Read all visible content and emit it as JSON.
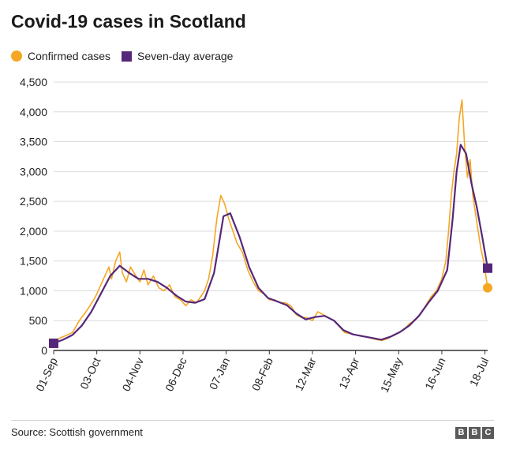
{
  "title": "Covid-19 cases in Scotland",
  "legend": {
    "confirmed": "Confirmed cases",
    "average": "Seven-day average"
  },
  "colors": {
    "confirmed": "#f5a623",
    "average": "#55277a",
    "grid": "#d9d9d9",
    "axis": "#333333"
  },
  "source": "Source: Scottish government",
  "logo": [
    "B",
    "B",
    "C"
  ],
  "chart_data": {
    "type": "line",
    "title": "Covid-19 cases in Scotland",
    "xlabel": "",
    "ylabel": "",
    "ylim": [
      0,
      4500
    ],
    "yticks": [
      0,
      500,
      1000,
      1500,
      2000,
      2500,
      3000,
      3500,
      4000,
      4500
    ],
    "ytick_labels": [
      "0",
      "500",
      "1,000",
      "1,500",
      "2,000",
      "2,500",
      "3,000",
      "3,500",
      "4,000",
      "4,500"
    ],
    "xticks": [
      "01-Sep",
      "03-Oct",
      "04-Nov",
      "06-Dec",
      "07-Jan",
      "08-Feb",
      "12-Mar",
      "13-Apr",
      "15-May",
      "16-Jun",
      "18-Jul"
    ],
    "x_range": [
      "2020-09-01",
      "2021-07-20"
    ],
    "grid": true,
    "legend_position": "top-left",
    "series": [
      {
        "name": "Confirmed cases",
        "style": "line with endpoint dot",
        "points": [
          [
            "2020-09-01",
            150
          ],
          [
            "2020-09-05",
            200
          ],
          [
            "2020-09-10",
            250
          ],
          [
            "2020-09-15",
            300
          ],
          [
            "2020-09-20",
            500
          ],
          [
            "2020-09-25",
            650
          ],
          [
            "2020-09-28",
            750
          ],
          [
            "2020-10-02",
            900
          ],
          [
            "2020-10-06",
            1100
          ],
          [
            "2020-10-10",
            1300
          ],
          [
            "2020-10-12",
            1400
          ],
          [
            "2020-10-14",
            1200
          ],
          [
            "2020-10-17",
            1500
          ],
          [
            "2020-10-20",
            1650
          ],
          [
            "2020-10-22",
            1300
          ],
          [
            "2020-10-25",
            1150
          ],
          [
            "2020-10-28",
            1400
          ],
          [
            "2020-11-01",
            1250
          ],
          [
            "2020-11-04",
            1150
          ],
          [
            "2020-11-07",
            1350
          ],
          [
            "2020-11-10",
            1100
          ],
          [
            "2020-11-14",
            1250
          ],
          [
            "2020-11-18",
            1050
          ],
          [
            "2020-11-22",
            1000
          ],
          [
            "2020-11-26",
            1100
          ],
          [
            "2020-11-30",
            900
          ],
          [
            "2020-12-04",
            850
          ],
          [
            "2020-12-08",
            750
          ],
          [
            "2020-12-12",
            850
          ],
          [
            "2020-12-16",
            800
          ],
          [
            "2020-12-19",
            900
          ],
          [
            "2020-12-22",
            1000
          ],
          [
            "2020-12-25",
            1200
          ],
          [
            "2020-12-28",
            1600
          ],
          [
            "2020-12-31",
            2200
          ],
          [
            "2021-01-03",
            2600
          ],
          [
            "2021-01-06",
            2450
          ],
          [
            "2021-01-09",
            2200
          ],
          [
            "2021-01-12",
            2000
          ],
          [
            "2021-01-15",
            1800
          ],
          [
            "2021-01-19",
            1650
          ],
          [
            "2021-01-23",
            1350
          ],
          [
            "2021-01-27",
            1150
          ],
          [
            "2021-01-31",
            1000
          ],
          [
            "2021-02-04",
            950
          ],
          [
            "2021-02-08",
            850
          ],
          [
            "2021-02-12",
            850
          ],
          [
            "2021-02-16",
            800
          ],
          [
            "2021-02-20",
            800
          ],
          [
            "2021-02-24",
            750
          ],
          [
            "2021-02-28",
            600
          ],
          [
            "2021-03-04",
            550
          ],
          [
            "2021-03-08",
            550
          ],
          [
            "2021-03-12",
            500
          ],
          [
            "2021-03-16",
            650
          ],
          [
            "2021-03-20",
            600
          ],
          [
            "2021-03-24",
            550
          ],
          [
            "2021-03-28",
            500
          ],
          [
            "2021-04-01",
            400
          ],
          [
            "2021-04-05",
            300
          ],
          [
            "2021-04-09",
            280
          ],
          [
            "2021-04-13",
            260
          ],
          [
            "2021-04-17",
            250
          ],
          [
            "2021-04-21",
            230
          ],
          [
            "2021-04-25",
            200
          ],
          [
            "2021-04-29",
            180
          ],
          [
            "2021-05-03",
            170
          ],
          [
            "2021-05-07",
            200
          ],
          [
            "2021-05-11",
            260
          ],
          [
            "2021-05-15",
            300
          ],
          [
            "2021-05-19",
            350
          ],
          [
            "2021-05-23",
            450
          ],
          [
            "2021-05-27",
            500
          ],
          [
            "2021-05-31",
            600
          ],
          [
            "2021-06-04",
            750
          ],
          [
            "2021-06-08",
            900
          ],
          [
            "2021-06-12",
            1000
          ],
          [
            "2021-06-16",
            1200
          ],
          [
            "2021-06-19",
            1500
          ],
          [
            "2021-06-21",
            2000
          ],
          [
            "2021-06-23",
            2600
          ],
          [
            "2021-06-25",
            3000
          ],
          [
            "2021-06-27",
            3300
          ],
          [
            "2021-06-29",
            3900
          ],
          [
            "2021-07-01",
            4200
          ],
          [
            "2021-07-03",
            3400
          ],
          [
            "2021-07-05",
            2900
          ],
          [
            "2021-07-07",
            3200
          ],
          [
            "2021-07-09",
            2600
          ],
          [
            "2021-07-11",
            2300
          ],
          [
            "2021-07-13",
            2000
          ],
          [
            "2021-07-15",
            1700
          ],
          [
            "2021-07-17",
            1500
          ],
          [
            "2021-07-20",
            1050
          ]
        ]
      },
      {
        "name": "Seven-day average",
        "style": "line with endpoint square",
        "points": [
          [
            "2020-09-01",
            120
          ],
          [
            "2020-09-08",
            180
          ],
          [
            "2020-09-15",
            260
          ],
          [
            "2020-09-22",
            420
          ],
          [
            "2020-09-29",
            650
          ],
          [
            "2020-10-06",
            950
          ],
          [
            "2020-10-13",
            1250
          ],
          [
            "2020-10-20",
            1420
          ],
          [
            "2020-10-27",
            1300
          ],
          [
            "2020-11-03",
            1200
          ],
          [
            "2020-11-10",
            1200
          ],
          [
            "2020-11-17",
            1150
          ],
          [
            "2020-11-24",
            1050
          ],
          [
            "2020-12-01",
            920
          ],
          [
            "2020-12-08",
            820
          ],
          [
            "2020-12-15",
            800
          ],
          [
            "2020-12-22",
            860
          ],
          [
            "2020-12-29",
            1300
          ],
          [
            "2021-01-05",
            2250
          ],
          [
            "2021-01-10",
            2300
          ],
          [
            "2021-01-17",
            1900
          ],
          [
            "2021-01-24",
            1400
          ],
          [
            "2021-01-31",
            1050
          ],
          [
            "2021-02-07",
            880
          ],
          [
            "2021-02-14",
            820
          ],
          [
            "2021-02-21",
            760
          ],
          [
            "2021-02-28",
            620
          ],
          [
            "2021-03-07",
            520
          ],
          [
            "2021-03-14",
            560
          ],
          [
            "2021-03-21",
            580
          ],
          [
            "2021-03-28",
            500
          ],
          [
            "2021-04-04",
            340
          ],
          [
            "2021-04-11",
            270
          ],
          [
            "2021-04-18",
            240
          ],
          [
            "2021-04-25",
            210
          ],
          [
            "2021-05-02",
            180
          ],
          [
            "2021-05-09",
            230
          ],
          [
            "2021-05-16",
            310
          ],
          [
            "2021-05-23",
            420
          ],
          [
            "2021-05-30",
            580
          ],
          [
            "2021-06-06",
            800
          ],
          [
            "2021-06-13",
            1000
          ],
          [
            "2021-06-20",
            1350
          ],
          [
            "2021-06-24",
            2200
          ],
          [
            "2021-06-27",
            3000
          ],
          [
            "2021-06-30",
            3450
          ],
          [
            "2021-07-04",
            3300
          ],
          [
            "2021-07-08",
            2800
          ],
          [
            "2021-07-12",
            2400
          ],
          [
            "2021-07-16",
            1900
          ],
          [
            "2021-07-20",
            1380
          ]
        ]
      }
    ]
  }
}
